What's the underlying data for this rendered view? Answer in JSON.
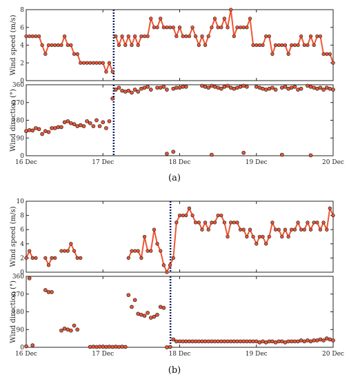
{
  "figure": {
    "captions": [
      "(a)",
      "(b)"
    ]
  },
  "style": {
    "line_color": "#ee5533",
    "marker_fill": "#ee5533",
    "marker_edge": "#222222",
    "divider_color": "#0a1a5a"
  },
  "chart_data": [
    {
      "type": "line",
      "panel": "a-speed",
      "xlabel": "",
      "ylabel": "Wind speed (m/s)",
      "xlim": [
        0,
        4
      ],
      "ylim": [
        0,
        8
      ],
      "yticks": [
        0,
        2,
        4,
        6,
        8
      ],
      "xticks": [
        0,
        1,
        2,
        3,
        4
      ],
      "xticklabels": [],
      "divider_x": 1.14,
      "segments": [
        {
          "x": [
            0.0,
            0.042,
            0.083,
            0.125,
            0.167,
            0.208,
            0.25,
            0.292,
            0.333,
            0.375,
            0.417,
            0.458,
            0.5,
            0.542,
            0.583,
            0.625,
            0.667,
            0.708,
            0.75,
            0.792,
            0.833,
            0.875,
            0.917,
            0.958,
            1.0,
            1.042,
            1.083,
            1.125
          ],
          "y": [
            5,
            5,
            5,
            5,
            5,
            4,
            3,
            4,
            4,
            4,
            4,
            4,
            5,
            4,
            4,
            3,
            3,
            2,
            2,
            2,
            2,
            2,
            2,
            2,
            2,
            1,
            2,
            1
          ]
        },
        {
          "x": [
            1.167,
            1.208,
            1.25,
            1.292,
            1.333,
            1.375,
            1.417,
            1.458,
            1.5,
            1.542,
            1.583,
            1.625,
            1.667,
            1.708,
            1.75,
            1.792,
            1.833,
            1.875,
            1.917,
            1.958,
            2.0,
            2.042,
            2.083,
            2.125,
            2.167,
            2.208,
            2.25,
            2.292,
            2.333,
            2.375,
            2.417,
            2.458,
            2.5,
            2.542,
            2.583,
            2.625,
            2.667,
            2.708,
            2.75,
            2.792,
            2.833,
            2.875,
            2.917,
            2.958,
            3.0,
            3.042,
            3.083,
            3.125,
            3.167,
            3.208,
            3.25,
            3.292,
            3.333,
            3.375,
            3.417,
            3.458,
            3.5,
            3.542,
            3.583,
            3.625,
            3.667,
            3.708,
            3.75,
            3.792,
            3.833,
            3.875,
            3.917,
            3.958,
            4.0
          ],
          "y": [
            5,
            4,
            5,
            4,
            5,
            4,
            5,
            4,
            5,
            5,
            5,
            7,
            6,
            6,
            7,
            6,
            6,
            6,
            6,
            5,
            6,
            5,
            5,
            5,
            6,
            5,
            4,
            5,
            4,
            5,
            6,
            7,
            6,
            6,
            7,
            6,
            8,
            5,
            6,
            6,
            6,
            6,
            7,
            4,
            4,
            4,
            4,
            5,
            5,
            3,
            4,
            4,
            4,
            4,
            3,
            4,
            4,
            4,
            5,
            4,
            4,
            5,
            4,
            5,
            5,
            3,
            3,
            3,
            2
          ]
        }
      ]
    },
    {
      "type": "scatter",
      "panel": "a-direction",
      "xlabel": "",
      "ylabel": "Wind direction (°)",
      "xlim": [
        0,
        4
      ],
      "ylim": [
        0,
        360
      ],
      "yticks": [
        0,
        90,
        180,
        270,
        360
      ],
      "xticks": [
        0,
        1,
        2,
        3,
        4
      ],
      "xticklabels": [
        "16 Dec",
        "17 Dec",
        "18 Dec",
        "19 Dec",
        "20 Dec"
      ],
      "divider_x": 1.14,
      "x": [
        0.0,
        0.042,
        0.083,
        0.125,
        0.167,
        0.208,
        0.25,
        0.292,
        0.333,
        0.375,
        0.417,
        0.458,
        0.5,
        0.542,
        0.583,
        0.625,
        0.667,
        0.708,
        0.75,
        0.792,
        0.833,
        0.875,
        0.917,
        0.958,
        1.0,
        1.042,
        1.083,
        1.125,
        1.167,
        1.208,
        1.25,
        1.292,
        1.333,
        1.375,
        1.417,
        1.458,
        1.5,
        1.542,
        1.583,
        1.625,
        1.708,
        1.75,
        1.792,
        1.833,
        1.917,
        1.958,
        2.0,
        2.042,
        2.083,
        2.292,
        2.333,
        2.375,
        2.417,
        2.458,
        2.5,
        2.542,
        2.583,
        2.625,
        2.667,
        2.708,
        2.75,
        2.792,
        2.833,
        2.875,
        3.0,
        3.042,
        3.083,
        3.125,
        3.167,
        3.208,
        3.25,
        3.333,
        3.375,
        3.417,
        3.458,
        3.5,
        3.542,
        3.583,
        3.667,
        3.708,
        3.75,
        3.792,
        3.833,
        3.875,
        3.917,
        3.958,
        4.0,
        1.833,
        1.917,
        2.417,
        2.833,
        3.333,
        3.708
      ],
      "y": [
        125,
        130,
        128,
        140,
        135,
        110,
        125,
        120,
        140,
        140,
        145,
        145,
        170,
        175,
        165,
        160,
        150,
        155,
        150,
        175,
        165,
        150,
        180,
        150,
        170,
        140,
        175,
        290,
        335,
        345,
        330,
        325,
        330,
        320,
        335,
        325,
        340,
        345,
        350,
        335,
        345,
        345,
        350,
        335,
        340,
        345,
        345,
        350,
        350,
        355,
        350,
        345,
        355,
        350,
        345,
        340,
        350,
        355,
        345,
        340,
        345,
        350,
        355,
        350,
        350,
        345,
        340,
        335,
        340,
        345,
        335,
        345,
        350,
        340,
        345,
        350,
        335,
        340,
        355,
        350,
        345,
        340,
        345,
        335,
        345,
        340,
        335,
        10,
        20,
        5,
        15,
        5,
        2
      ]
    },
    {
      "type": "line",
      "panel": "b-speed",
      "xlabel": "",
      "ylabel": "Wind speed (m/s)",
      "xlim": [
        0,
        4
      ],
      "ylim": [
        0,
        10
      ],
      "yticks": [
        0,
        2,
        4,
        6,
        8,
        10
      ],
      "xticks": [
        0,
        1,
        2,
        3,
        4
      ],
      "xticklabels": [],
      "divider_x": 1.88,
      "segments": [
        {
          "x": [
            0.0,
            0.042,
            0.083,
            0.125
          ],
          "y": [
            2,
            3,
            2,
            2
          ]
        },
        {
          "x": [
            0.25,
            0.292,
            0.333,
            0.375
          ],
          "y": [
            2,
            1,
            2,
            2
          ]
        },
        {
          "x": [
            0.458,
            0.5,
            0.542,
            0.583,
            0.625,
            0.667,
            0.708
          ],
          "y": [
            3,
            3,
            3,
            4,
            3,
            2,
            2
          ]
        },
        {
          "x": [
            1.333,
            1.375,
            1.417,
            1.458,
            1.5,
            1.542,
            1.583,
            1.625,
            1.667,
            1.708,
            1.75,
            1.792,
            1.833,
            1.875,
            1.917,
            1.958,
            2.0,
            2.042,
            2.083,
            2.125,
            2.167,
            2.208,
            2.25,
            2.292,
            2.333,
            2.375,
            2.417,
            2.458,
            2.5,
            2.542,
            2.583,
            2.625,
            2.667,
            2.708,
            2.75,
            2.792,
            2.833,
            2.875,
            2.917,
            2.958,
            3.0,
            3.042,
            3.083,
            3.125,
            3.167,
            3.208,
            3.25,
            3.292,
            3.333,
            3.375,
            3.417,
            3.458,
            3.5,
            3.542,
            3.583,
            3.625,
            3.667,
            3.708,
            3.75,
            3.792,
            3.833,
            3.875,
            3.917,
            3.958,
            4.0
          ],
          "y": [
            2,
            3,
            3,
            3,
            2,
            5,
            3,
            3,
            6,
            4,
            3,
            1,
            0,
            1,
            2,
            7,
            8,
            8,
            8,
            9,
            8,
            7,
            7,
            6,
            7,
            6,
            7,
            7,
            8,
            8,
            7,
            5,
            7,
            7,
            7,
            6,
            6,
            5,
            6,
            5,
            4,
            5,
            5,
            4,
            5,
            7,
            6,
            6,
            5,
            6,
            5,
            6,
            6,
            7,
            6,
            6,
            7,
            6,
            7,
            7,
            6,
            7,
            6,
            9,
            8
          ]
        }
      ]
    },
    {
      "type": "scatter",
      "panel": "b-direction",
      "xlabel": "",
      "ylabel": "Wind direction (°)",
      "xlim": [
        0,
        4
      ],
      "ylim": [
        0,
        360
      ],
      "yticks": [
        0,
        90,
        180,
        270,
        360
      ],
      "xticks": [
        0,
        1,
        2,
        3,
        4
      ],
      "xticklabels": [
        "16 Dec",
        "17 Dec",
        "18 Dec",
        "19 Dec",
        "20 Dec"
      ],
      "divider_x": 1.88,
      "x": [
        0.0,
        0.042,
        0.083,
        0.25,
        0.292,
        0.333,
        0.458,
        0.5,
        0.542,
        0.583,
        0.625,
        0.667,
        0.833,
        0.875,
        0.917,
        0.958,
        1.0,
        1.042,
        1.083,
        1.125,
        1.167,
        1.208,
        1.25,
        1.292,
        1.333,
        1.375,
        1.417,
        1.458,
        1.5,
        1.542,
        1.583,
        1.625,
        1.667,
        1.708,
        1.75,
        1.792,
        1.833,
        1.875,
        1.917,
        1.958,
        2.0,
        2.042,
        2.083,
        2.125,
        2.167,
        2.208,
        2.25,
        2.292,
        2.333,
        2.375,
        2.417,
        2.458,
        2.5,
        2.542,
        2.583,
        2.625,
        2.667,
        2.708,
        2.75,
        2.792,
        2.833,
        2.875,
        2.917,
        2.958,
        3.0,
        3.042,
        3.083,
        3.125,
        3.167,
        3.208,
        3.25,
        3.292,
        3.333,
        3.375,
        3.417,
        3.458,
        3.5,
        3.542,
        3.583,
        3.625,
        3.667,
        3.708,
        3.75,
        3.792,
        3.833,
        3.875,
        3.917,
        3.958,
        4.0
      ],
      "y": [
        5,
        350,
        10,
        290,
        280,
        280,
        85,
        95,
        90,
        85,
        110,
        90,
        2,
        3,
        2,
        3,
        3,
        2,
        3,
        2,
        3,
        2,
        3,
        2,
        265,
        205,
        240,
        170,
        165,
        160,
        175,
        150,
        155,
        165,
        205,
        200,
        0,
        2,
        40,
        30,
        30,
        30,
        30,
        30,
        30,
        30,
        30,
        30,
        30,
        30,
        30,
        30,
        30,
        30,
        30,
        30,
        30,
        30,
        30,
        30,
        30,
        30,
        30,
        30,
        30,
        25,
        30,
        25,
        30,
        30,
        25,
        30,
        30,
        25,
        30,
        30,
        30,
        30,
        35,
        30,
        35,
        30,
        35,
        35,
        40,
        35,
        45,
        40,
        35
      ]
    }
  ]
}
